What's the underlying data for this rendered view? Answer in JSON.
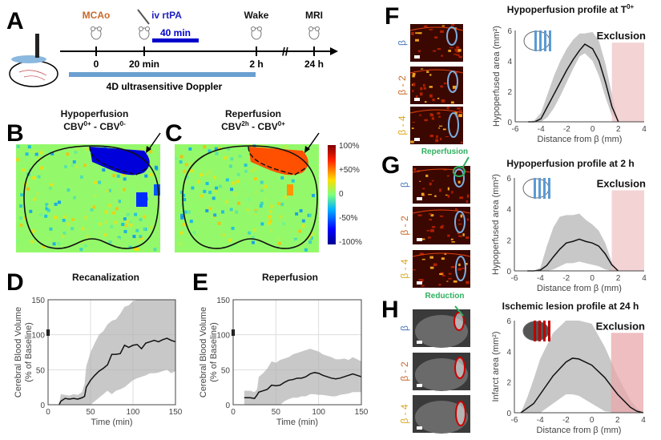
{
  "panel_labels": {
    "A": "A",
    "B": "B",
    "C": "C",
    "D": "D",
    "E": "E",
    "F": "F",
    "G": "G",
    "H": "H"
  },
  "timeline": {
    "events": [
      {
        "label": "MCAo",
        "color": "#c8692a",
        "tick": "0"
      },
      {
        "label": "iv rtPA",
        "color": "#2020c0",
        "tick": "20 min"
      },
      {
        "label": "Wake",
        "color": "#111111",
        "tick": "2 h"
      },
      {
        "label": "MRI",
        "color": "#111111",
        "tick": "24 h"
      }
    ],
    "rtpa_duration": "40 min",
    "rtpa_color": "#0000cc",
    "doppler_label": "4D ultrasensitive Doppler",
    "doppler_color": "#6a9fd0",
    "axis_break": "//"
  },
  "maps": {
    "B": {
      "title": "Hypoperfusion",
      "formula": {
        "a": "CBV",
        "a_sup": "0+",
        "sep": " - ",
        "b": "CBV",
        "b_sup": "0-"
      }
    },
    "C": {
      "title": "Reperfusion",
      "formula": {
        "a": "CBV",
        "a_sup": "2h",
        "sep": " - ",
        "b": "CBV",
        "b_sup": "0+"
      }
    },
    "colorbar_labels": [
      "100%",
      "+50%",
      "0",
      "-50%",
      "-100%"
    ],
    "colormap": "jet"
  },
  "chart_data": [
    {
      "id": "D",
      "type": "line",
      "title": "Recanalization",
      "xlabel": "Time (min)",
      "ylabel": [
        "Cerebral Blood Volume",
        "(% of Baseline)"
      ],
      "xlim": [
        0,
        150
      ],
      "ylim": [
        0,
        150
      ],
      "xticks": [
        0,
        50,
        100,
        150
      ],
      "yticks": [
        0,
        50,
        100,
        150
      ],
      "grid": true,
      "baseline_point": [
        0,
        103
      ],
      "x": [
        13,
        15,
        20,
        25,
        30,
        35,
        40,
        43,
        45,
        50,
        55,
        60,
        65,
        70,
        75,
        80,
        85,
        90,
        95,
        100,
        105,
        110,
        115,
        120,
        125,
        130,
        135,
        140,
        145,
        150
      ],
      "mean": [
        0,
        5,
        9,
        8,
        9,
        8,
        10,
        12,
        25,
        35,
        42,
        48,
        52,
        57,
        72,
        72,
        73,
        85,
        82,
        85,
        86,
        80,
        88,
        90,
        92,
        90,
        93,
        95,
        92,
        90
      ],
      "upper": [
        0,
        15,
        14,
        13,
        15,
        14,
        18,
        30,
        55,
        75,
        88,
        100,
        105,
        115,
        120,
        122,
        130,
        140,
        142,
        148,
        150,
        150,
        150,
        150,
        150,
        150,
        150,
        150,
        150,
        150
      ],
      "lower": [
        0,
        0,
        0,
        0,
        0,
        0,
        0,
        0,
        0,
        0,
        5,
        10,
        15,
        20,
        15,
        20,
        22,
        25,
        30,
        35,
        38,
        40,
        42,
        45,
        45,
        46,
        48,
        50,
        45,
        48
      ]
    },
    {
      "id": "E",
      "type": "line",
      "title": "Reperfusion",
      "xlabel": "Time (min)",
      "ylabel": [
        "Cerebral Blood Volume",
        "(% of Baseline)"
      ],
      "xlim": [
        0,
        150
      ],
      "ylim": [
        0,
        150
      ],
      "xticks": [
        0,
        50,
        100,
        150
      ],
      "yticks": [
        0,
        50,
        100,
        150
      ],
      "grid": true,
      "baseline_point": [
        0,
        103
      ],
      "x": [
        13,
        20,
        25,
        28,
        30,
        35,
        40,
        45,
        50,
        55,
        60,
        65,
        70,
        75,
        80,
        85,
        90,
        95,
        100,
        105,
        110,
        115,
        120,
        125,
        130,
        135,
        140,
        145,
        150
      ],
      "mean": [
        10,
        10,
        9,
        14,
        18,
        20,
        22,
        28,
        27,
        28,
        32,
        35,
        36,
        38,
        38,
        40,
        44,
        46,
        45,
        42,
        40,
        38,
        37,
        38,
        40,
        42,
        44,
        42,
        40
      ],
      "upper": [
        20,
        20,
        18,
        22,
        40,
        45,
        52,
        62,
        60,
        64,
        66,
        68,
        72,
        74,
        76,
        78,
        80,
        78,
        76,
        72,
        70,
        68,
        65,
        65,
        66,
        64,
        68,
        65,
        62
      ],
      "lower": [
        0,
        0,
        0,
        0,
        0,
        0,
        0,
        0,
        0,
        0,
        5,
        8,
        10,
        10,
        12,
        12,
        15,
        15,
        14,
        14,
        13,
        12,
        12,
        14,
        15,
        16,
        18,
        18,
        18
      ]
    },
    {
      "id": "F",
      "type": "line",
      "title": "Hypoperfusion profile at T",
      "title_sup": "0+",
      "xlabel": "Distance from β (mm)",
      "ylabel": [
        "Hypoperfused area (mm²)"
      ],
      "xlim": [
        -6,
        4
      ],
      "ylim": [
        0,
        6
      ],
      "xticks": [
        -6,
        -4,
        -2,
        0,
        2,
        4
      ],
      "yticks": [
        0,
        2,
        4,
        6
      ],
      "grid": false,
      "exclusion": {
        "label": "Exclusion",
        "x": [
          1.5,
          4
        ],
        "top": 5.2,
        "color": "#f0c4c6"
      },
      "x": [
        -5,
        -4.5,
        -4,
        -3.5,
        -3,
        -2.5,
        -2,
        -1.5,
        -1,
        -0.6,
        0,
        0.5,
        1,
        1.5,
        2
      ],
      "mean": [
        0,
        0,
        0.2,
        1,
        1.8,
        2.6,
        3.4,
        4.1,
        4.7,
        5.1,
        4.8,
        4.0,
        2.6,
        1.0,
        0
      ],
      "upper": [
        0,
        0.1,
        0.6,
        1.8,
        3.0,
        4.0,
        4.8,
        5.4,
        5.8,
        5.8,
        5.9,
        5.3,
        3.8,
        1.8,
        0
      ],
      "lower": [
        0,
        0,
        0,
        0.3,
        0.9,
        1.7,
        2.6,
        3.5,
        4.3,
        4.5,
        4.0,
        3.0,
        1.6,
        0.4,
        0
      ]
    },
    {
      "id": "G",
      "type": "line",
      "title": "Hypoperfusion profile at 2 h",
      "xlabel": "Distance from β (mm)",
      "ylabel": [
        "Hypoperfused area (mm²)"
      ],
      "xlim": [
        -6,
        4
      ],
      "ylim": [
        0,
        6
      ],
      "xticks": [
        -6,
        -4,
        -2,
        0,
        2,
        4
      ],
      "yticks": [
        0,
        2,
        4,
        6
      ],
      "grid": false,
      "exclusion": {
        "label": "Exclusion",
        "x": [
          1.5,
          4
        ],
        "top": 5.2,
        "color": "#f0c4c6"
      },
      "x": [
        -5,
        -4.5,
        -4,
        -3.5,
        -3,
        -2.5,
        -2,
        -1.5,
        -1,
        -0.5,
        0,
        0.5,
        1,
        1.5,
        2
      ],
      "mean": [
        0,
        0,
        0.05,
        0.35,
        0.9,
        1.4,
        1.8,
        1.9,
        2.05,
        1.9,
        1.8,
        1.6,
        1.1,
        0.4,
        0
      ],
      "upper": [
        0,
        0,
        0.2,
        1.6,
        2.8,
        3.5,
        3.6,
        3.6,
        3.7,
        3.3,
        3.0,
        2.6,
        1.8,
        0.6,
        0
      ],
      "lower": [
        0,
        0,
        0,
        0,
        0.1,
        0.3,
        0.5,
        0.5,
        0.6,
        0.5,
        0.4,
        0.3,
        0.1,
        0,
        0
      ]
    },
    {
      "id": "H",
      "type": "line",
      "title": "Ischemic lesion profile at 24 h",
      "xlabel": "Distance from β (mm)",
      "ylabel": [
        "Infarct area (mm²)"
      ],
      "xlim": [
        -6,
        4
      ],
      "ylim": [
        0,
        6
      ],
      "xticks": [
        -6,
        -4,
        -2,
        0,
        2,
        4
      ],
      "yticks": [
        0,
        2,
        4,
        6
      ],
      "grid": false,
      "exclusion": {
        "label": "Exclusion",
        "x": [
          1.5,
          4
        ],
        "top": 5.2,
        "color": "#e8a8ac"
      },
      "x": [
        -5.5,
        -5,
        -4.5,
        -4,
        -3,
        -2,
        -1.5,
        -1,
        0,
        1,
        2,
        3,
        3.5,
        4
      ],
      "mean": [
        0,
        0.3,
        0.6,
        1.2,
        2.4,
        3.3,
        3.55,
        3.5,
        3.1,
        2.3,
        1.2,
        0.35,
        0.1,
        0
      ],
      "upper": [
        0,
        1.0,
        2.2,
        3.5,
        5.2,
        6,
        6,
        6,
        5.8,
        4.3,
        2.4,
        0.8,
        0.3,
        0
      ],
      "lower": [
        0,
        0,
        0,
        0,
        0.6,
        1.2,
        1.2,
        1.1,
        0.6,
        0.1,
        0,
        0,
        0,
        0
      ]
    }
  ],
  "slices": {
    "labels": [
      "β",
      "β - 2",
      "β - 4"
    ],
    "label_colors": [
      "#4a78b8",
      "#c8692a",
      "#d9a820"
    ],
    "G_annotation": "Reperfusion",
    "H_annotation": "Reduction",
    "annotation_color": "#2fb060"
  }
}
